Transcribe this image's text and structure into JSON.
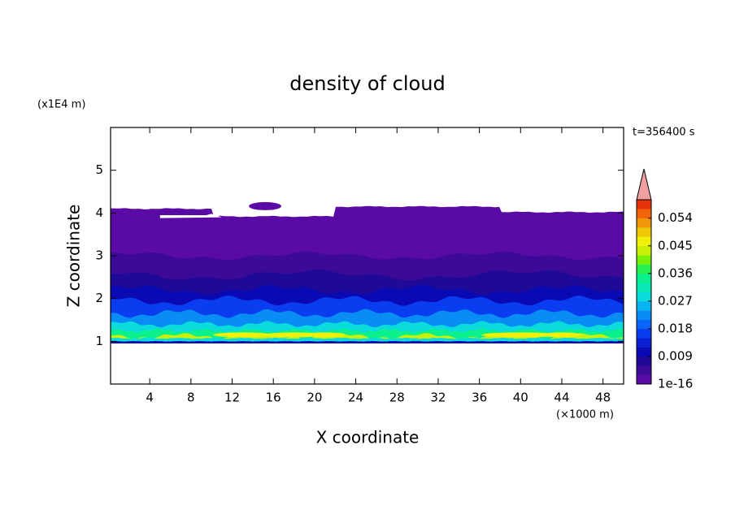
{
  "chart_data": {
    "type": "contour",
    "title": "density of cloud",
    "x_label": "X coordinate",
    "y_label": "Z coordinate",
    "x_unit": "(×1000 m)",
    "y_unit": "(x1E4 m)",
    "time_label": "t=356400 s",
    "xlim": [
      0.2,
      50
    ],
    "xticks": [
      4,
      8,
      12,
      16,
      20,
      24,
      28,
      32,
      36,
      40,
      44,
      48
    ],
    "ylim": [
      0,
      6
    ],
    "yticks": [
      1,
      2,
      3,
      4,
      5
    ],
    "colorbar": {
      "lim": [
        1e-16,
        0.06
      ],
      "ticks": [
        {
          "value": 1e-16,
          "label": "1e-16"
        },
        0.009,
        0.018,
        0.027,
        0.036,
        0.045,
        0.054
      ],
      "colors": [
        "#5a0aa5",
        "#3c0a96",
        "#1e0a96",
        "#0a0ab4",
        "#0a1ed2",
        "#0a3cf0",
        "#0a64f5",
        "#0a8cf5",
        "#0ab4f0",
        "#0adcdc",
        "#0ae6b4",
        "#0af08c",
        "#28f050",
        "#78f00a",
        "#c8f00a",
        "#f0f00a",
        "#f0c80a",
        "#f0960a",
        "#f0640a",
        "#e6320a"
      ],
      "extend_color": "#f0a0a0"
    }
  }
}
